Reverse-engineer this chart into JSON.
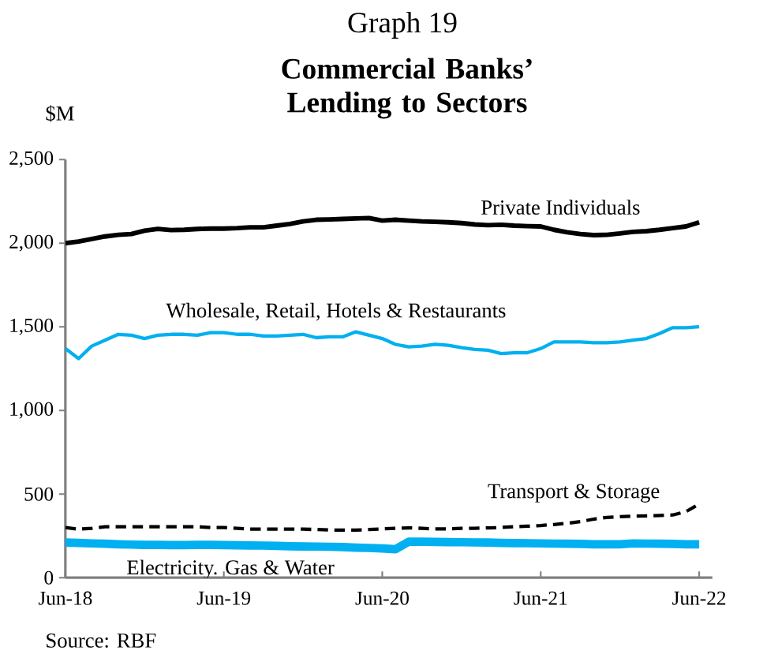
{
  "chart_data": {
    "type": "line",
    "title": "Graph 19",
    "subtitle": "Commercial Banks’ Lending to Sectors",
    "ylabel": "$M",
    "annotations": [
      "Source: RBF"
    ],
    "x": [
      "2018-06",
      "2018-07",
      "2018-08",
      "2018-09",
      "2018-10",
      "2018-11",
      "2018-12",
      "2019-01",
      "2019-02",
      "2019-03",
      "2019-04",
      "2019-05",
      "2019-06",
      "2019-07",
      "2019-08",
      "2019-09",
      "2019-10",
      "2019-11",
      "2019-12",
      "2020-01",
      "2020-02",
      "2020-03",
      "2020-04",
      "2020-05",
      "2020-06",
      "2020-07",
      "2020-08",
      "2020-09",
      "2020-10",
      "2020-11",
      "2020-12",
      "2021-01",
      "2021-02",
      "2021-03",
      "2021-04",
      "2021-05",
      "2021-06",
      "2021-07",
      "2021-08",
      "2021-09",
      "2021-10",
      "2021-11",
      "2021-12",
      "2022-01",
      "2022-02",
      "2022-03",
      "2022-04",
      "2022-05",
      "2022-06"
    ],
    "series": [
      {
        "name": "Private Individuals",
        "color": "#000000",
        "values": [
          2000,
          2010,
          2025,
          2040,
          2050,
          2055,
          2075,
          2085,
          2078,
          2080,
          2085,
          2087,
          2087,
          2090,
          2095,
          2095,
          2105,
          2115,
          2130,
          2140,
          2142,
          2145,
          2148,
          2150,
          2135,
          2140,
          2135,
          2130,
          2128,
          2125,
          2120,
          2112,
          2108,
          2110,
          2105,
          2102,
          2100,
          2080,
          2065,
          2055,
          2048,
          2050,
          2058,
          2068,
          2072,
          2080,
          2090,
          2100,
          2125
        ]
      },
      {
        "name": "Wholesale, Retail, Hotels & Restaurants",
        "color": "#00b0f0",
        "values": [
          1370,
          1310,
          1385,
          1420,
          1455,
          1450,
          1430,
          1450,
          1455,
          1455,
          1450,
          1465,
          1465,
          1455,
          1455,
          1445,
          1445,
          1450,
          1455,
          1435,
          1440,
          1440,
          1470,
          1450,
          1430,
          1395,
          1380,
          1385,
          1395,
          1390,
          1375,
          1365,
          1360,
          1340,
          1345,
          1345,
          1370,
          1410,
          1410,
          1410,
          1405,
          1405,
          1410,
          1420,
          1430,
          1460,
          1495,
          1495,
          1500
        ]
      },
      {
        "name": "Transport & Storage",
        "color": "#000000",
        "line_style": "dashed",
        "values": [
          300,
          290,
          295,
          305,
          305,
          305,
          305,
          305,
          305,
          305,
          305,
          300,
          300,
          295,
          290,
          290,
          290,
          290,
          290,
          288,
          285,
          285,
          285,
          288,
          292,
          295,
          298,
          295,
          292,
          292,
          295,
          295,
          298,
          300,
          305,
          308,
          312,
          318,
          325,
          335,
          350,
          360,
          365,
          368,
          370,
          372,
          375,
          395,
          440
        ]
      },
      {
        "name": "Electricity. Gas & Water",
        "color": "#00b0f0",
        "values": [
          210,
          208,
          205,
          203,
          200,
          198,
          196,
          196,
          195,
          195,
          196,
          196,
          195,
          194,
          193,
          192,
          190,
          188,
          187,
          186,
          185,
          183,
          180,
          178,
          175,
          170,
          215,
          215,
          214,
          213,
          212,
          211,
          210,
          208,
          207,
          206,
          205,
          204,
          203,
          202,
          200,
          200,
          200,
          205,
          204,
          203,
          202,
          200,
          200
        ]
      }
    ],
    "xlim": [
      "2018-06",
      "2022-07"
    ],
    "xticks": [
      {
        "value": "2018-06",
        "label": "Jun-18"
      },
      {
        "value": "2019-06",
        "label": "Jun-19"
      },
      {
        "value": "2020-06",
        "label": "Jun-20"
      },
      {
        "value": "2021-06",
        "label": "Jun-21"
      },
      {
        "value": "2022-06",
        "label": "Jun-22"
      }
    ],
    "ylim": [
      0,
      2500
    ],
    "yticks": [
      {
        "value": 0,
        "label": "0"
      },
      {
        "value": 500,
        "label": "500"
      },
      {
        "value": 1000,
        "label": "1,000"
      },
      {
        "value": 1500,
        "label": "1,500"
      },
      {
        "value": 2000,
        "label": "2,000"
      },
      {
        "value": 2500,
        "label": "2,500"
      }
    ],
    "grid": false,
    "line_style": "solid",
    "marker": "none"
  }
}
